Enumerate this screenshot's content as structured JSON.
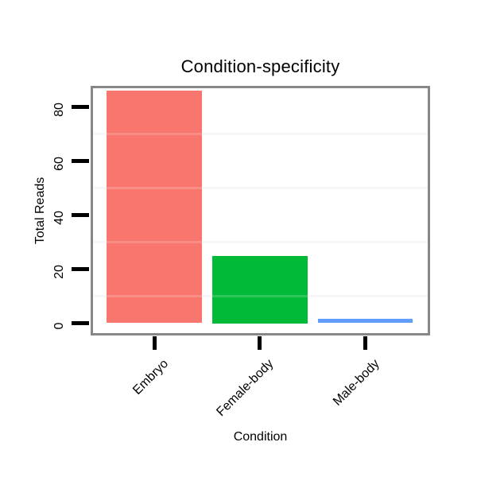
{
  "window": {
    "background": "#ffffff"
  },
  "chart_data": {
    "type": "bar",
    "title": "Condition-specificity",
    "xlabel": "Condition",
    "ylabel": "Total Reads",
    "categories": [
      "Embryo",
      "Female-body",
      "Male-body"
    ],
    "values": [
      86,
      25,
      1.6
    ],
    "bar_colors": [
      "#F8766D",
      "#00BA38",
      "#619CFF"
    ],
    "yticks": [
      0,
      20,
      40,
      60,
      80
    ],
    "minor_gridlines": [
      10,
      30,
      50,
      70
    ],
    "ylim": [
      -4,
      88
    ],
    "grid": "minor-horizontal-only",
    "legend_position": "none",
    "panel_border_color": "#878787",
    "gridline_color": "#f6f6f6",
    "tick_color": "#000000",
    "text_color": "#000000"
  }
}
